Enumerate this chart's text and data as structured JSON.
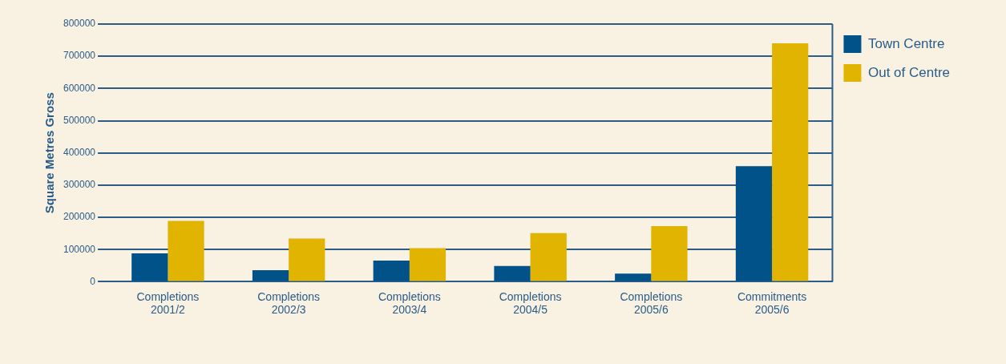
{
  "chart_data": {
    "type": "bar",
    "ylabel": "Square Metres Gross",
    "categories": [
      "Completions\n2001/2",
      "Completions\n2002/3",
      "Completions\n2003/4",
      "Completions\n2004/5",
      "Completions\n2005/6",
      "Commitments\n2005/6"
    ],
    "series": [
      {
        "name": "Town Centre",
        "color": "#005288",
        "values": [
          88000,
          36000,
          66000,
          49000,
          25000,
          359000
        ]
      },
      {
        "name": "Out of Centre",
        "color": "#e0b400",
        "values": [
          189000,
          134000,
          104000,
          151000,
          173000,
          740000
        ]
      }
    ],
    "ylim": [
      0,
      800000
    ],
    "yticks": [
      0,
      100000,
      200000,
      300000,
      400000,
      500000,
      600000,
      700000,
      800000
    ],
    "grid": "y",
    "legend": "top right"
  }
}
